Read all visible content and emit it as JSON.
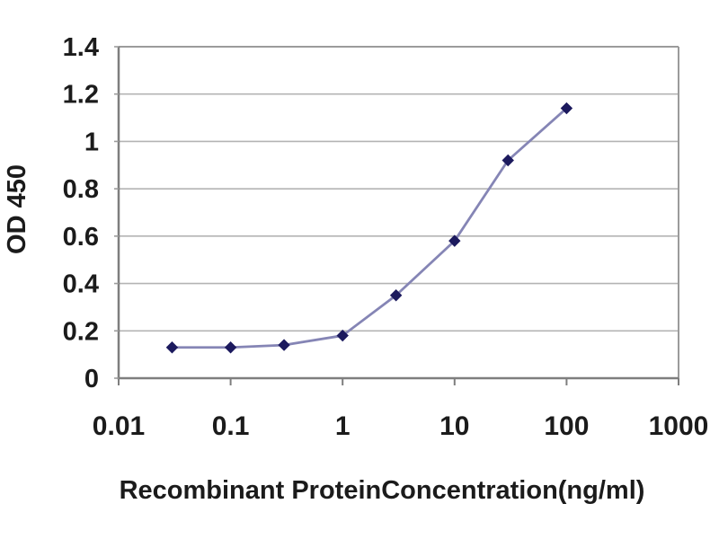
{
  "page": {
    "background_color": "#ffffff"
  },
  "chart_data": {
    "type": "line",
    "title": "",
    "xlabel": "Recombinant ProteinConcentration(ng/ml)",
    "ylabel": "OD 450",
    "x_scale": "log",
    "xlim": [
      0.01,
      1000
    ],
    "ylim": [
      0,
      1.4
    ],
    "x": [
      0.03,
      0.1,
      0.3,
      1,
      3,
      10,
      30,
      100
    ],
    "y": [
      0.13,
      0.13,
      0.14,
      0.18,
      0.35,
      0.58,
      0.92,
      1.14
    ],
    "x_tick_values": [
      0.01,
      0.1,
      1,
      10,
      100,
      1000
    ],
    "x_tick_labels": [
      "0.01",
      "0.1",
      "1",
      "10",
      "100",
      "1000"
    ],
    "y_tick_values": [
      0,
      0.2,
      0.4,
      0.6,
      0.8,
      1,
      1.2,
      1.4
    ],
    "y_tick_labels": [
      "0",
      "0.2",
      "0.4",
      "0.6",
      "0.8",
      "1",
      "1.2",
      "1.4"
    ],
    "grid": "horizontal",
    "legend": "none",
    "marker_shape": "diamond",
    "colors": {
      "line": "#8585b5",
      "marker": "#1c1a5e",
      "gridline": "#b4b4b4",
      "border": "#9b9b9b",
      "axis": "#7e7e7e",
      "text": "#1b1b1b"
    }
  }
}
